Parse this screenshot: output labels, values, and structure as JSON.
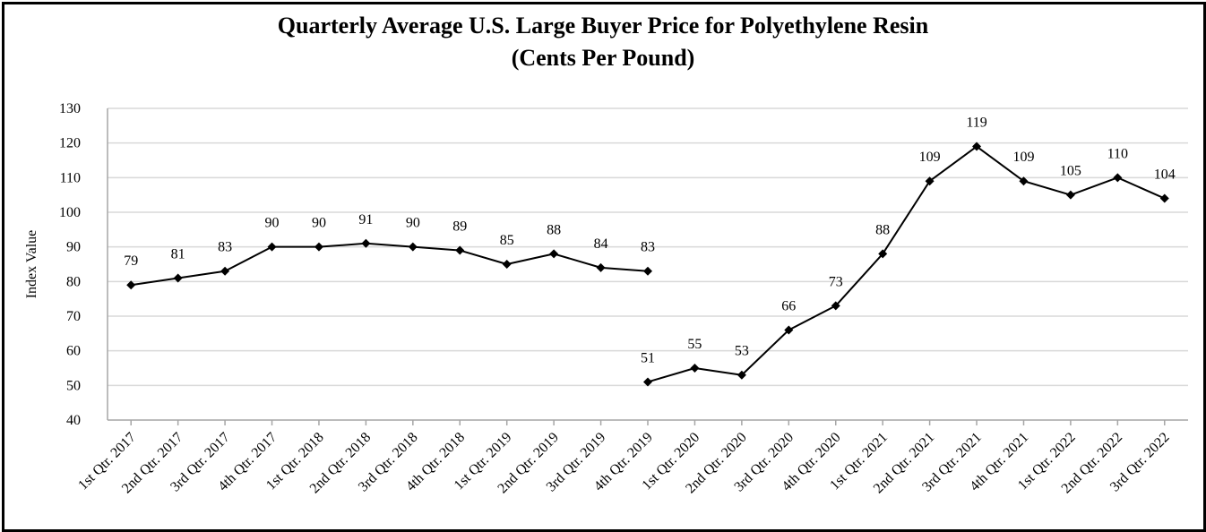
{
  "chart_data": {
    "type": "line",
    "title": "Quarterly Average U.S. Large Buyer Price for Polyethylene Resin",
    "subtitle": "(Cents Per Pound)",
    "xlabel": "",
    "ylabel": "Index Value",
    "ylim": [
      40,
      130
    ],
    "yticks": [
      40,
      50,
      60,
      70,
      80,
      90,
      100,
      110,
      120,
      130
    ],
    "grid": true,
    "categories": [
      "1st Qtr. 2017",
      "2nd Qtr. 2017",
      "3rd Qtr. 2017",
      "4th Qtr. 2017",
      "1st Qtr. 2018",
      "2nd Qtr. 2018",
      "3rd Qtr. 2018",
      "4th Qtr. 2018",
      "1st Qtr. 2019",
      "2nd Qtr. 2019",
      "3rd Qtr. 2019",
      "4th Qtr. 2019",
      "1st Qtr. 2020",
      "2nd Qtr. 2020",
      "3rd Qtr. 2020",
      "4th Qtr. 2020",
      "1st Qtr. 2021",
      "2nd Qtr. 2021",
      "3rd Qtr. 2021",
      "4th Qtr. 2021",
      "1st Qtr. 2022",
      "2nd Qtr. 2022",
      "3rd Qtr. 2022"
    ],
    "series": [
      {
        "name": "Price",
        "color": "#000000",
        "segments": [
          {
            "start_index": 0,
            "values": [
              79,
              81,
              83,
              90,
              90,
              91,
              90,
              89,
              85,
              88,
              84,
              83
            ]
          },
          {
            "start_index": 11,
            "values": [
              51,
              55,
              53,
              66,
              73,
              88,
              109,
              119,
              109,
              105,
              110,
              104
            ]
          }
        ]
      }
    ]
  }
}
